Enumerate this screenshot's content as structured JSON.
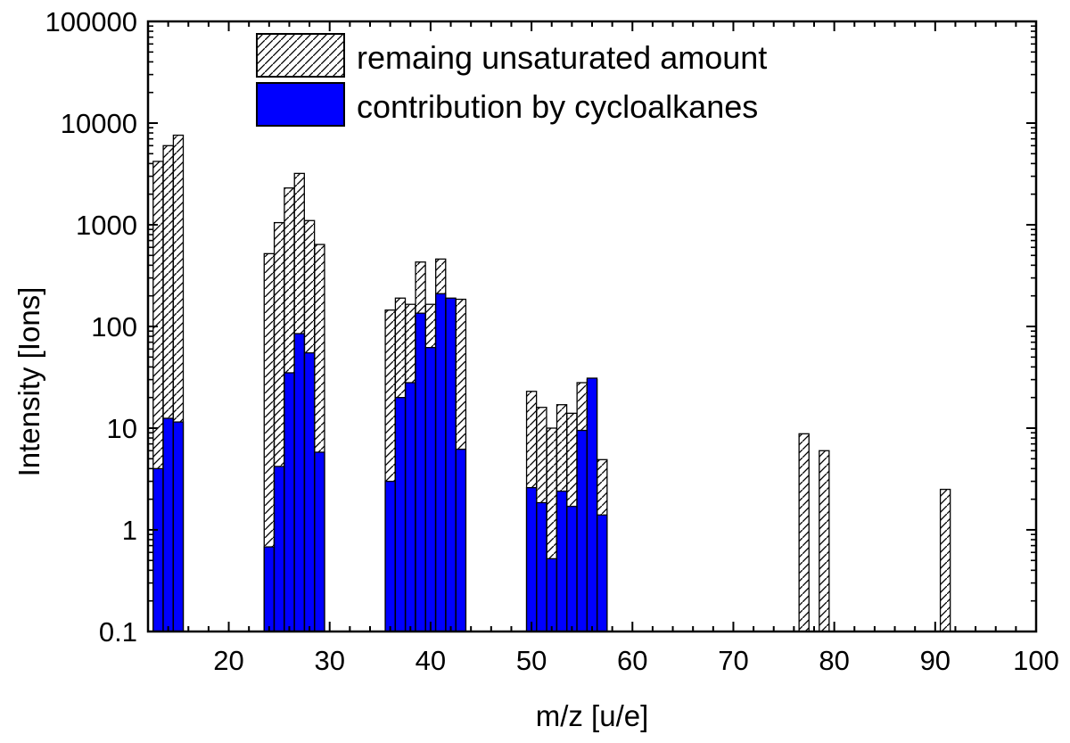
{
  "chart_data": {
    "type": "bar",
    "scale": "log",
    "xlabel": "m/z [u/e]",
    "ylabel": "Intensity [Ions]",
    "xlim": [
      12,
      100
    ],
    "ylim": [
      0.1,
      100000
    ],
    "x_ticks": [
      "20",
      "30",
      "40",
      "50",
      "60",
      "70",
      "80",
      "90",
      "100"
    ],
    "y_ticks": [
      "0.1",
      "1",
      "10",
      "100",
      "1000",
      "10000",
      "100000"
    ],
    "x_tick_values": [
      20,
      30,
      40,
      50,
      60,
      70,
      80,
      90,
      100
    ],
    "y_tick_values": [
      0.1,
      1,
      10,
      100,
      1000,
      10000,
      100000
    ],
    "legend": [
      {
        "key": "total",
        "label": "remaing unsaturated amount"
      },
      {
        "key": "cyclo",
        "label": "contribution by cycloalkanes"
      }
    ],
    "colors": {
      "cyclo": "#0000ff",
      "hatch": "#000000"
    },
    "categories": [
      13,
      14,
      15,
      24,
      25,
      26,
      27,
      28,
      29,
      36,
      37,
      38,
      39,
      40,
      41,
      42,
      43,
      50,
      51,
      52,
      53,
      54,
      55,
      56,
      57,
      77,
      79,
      91
    ],
    "series": [
      {
        "name": "remaing unsaturated amount",
        "key": "total",
        "values": [
          4200,
          6000,
          7600,
          520,
          1050,
          2300,
          3200,
          1100,
          640,
          145,
          190,
          165,
          430,
          165,
          460,
          185,
          185,
          23,
          16,
          10,
          17,
          14,
          28,
          30,
          4.9,
          8.8,
          6,
          2.5
        ]
      },
      {
        "name": "contribution by cycloalkanes",
        "key": "cyclo",
        "values": [
          4,
          12.5,
          11.5,
          0.68,
          4.2,
          35,
          85,
          55,
          5.8,
          3,
          20,
          28,
          135,
          62,
          210,
          190,
          6.2,
          2.6,
          1.85,
          0.52,
          2.4,
          1.7,
          9.5,
          31,
          1.4,
          null,
          null,
          null
        ]
      }
    ]
  }
}
